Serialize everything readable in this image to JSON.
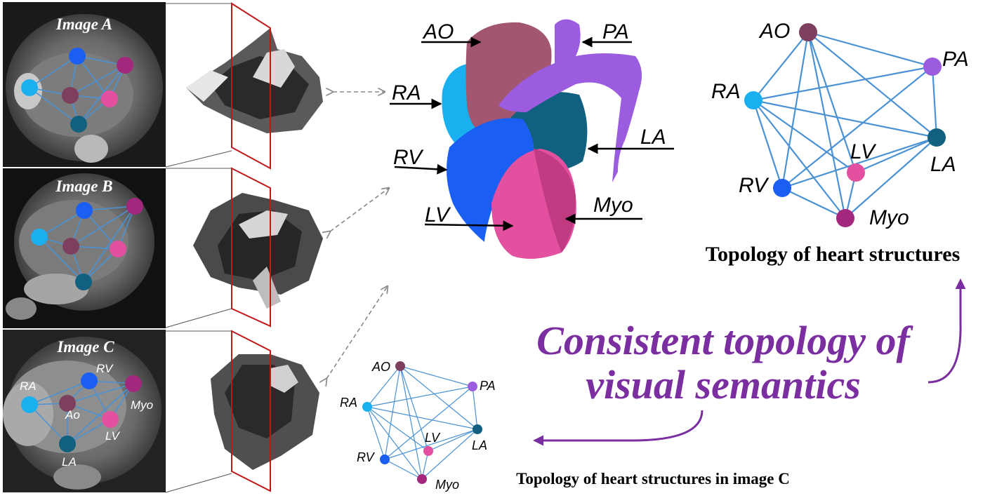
{
  "panels": [
    {
      "label": "Image A"
    },
    {
      "label": "Image B"
    },
    {
      "label": "Image C",
      "node_labels": [
        "RA",
        "RV",
        "Myo",
        "Ao",
        "LV",
        "LA"
      ]
    }
  ],
  "heart": {
    "labels": [
      "AO",
      "PA",
      "RA",
      "LA",
      "RV",
      "LV",
      "Myo"
    ]
  },
  "topology_main": {
    "title": "Topology of heart structures",
    "nodes": [
      "AO",
      "PA",
      "RA",
      "LA",
      "LV",
      "RV",
      "Myo"
    ]
  },
  "topology_c": {
    "title": "Topology of heart structures in image C",
    "nodes": [
      "AO",
      "PA",
      "RA",
      "LA",
      "LV",
      "RV",
      "Myo"
    ]
  },
  "headline": {
    "line1": "Consistent topology of",
    "line2": "visual semantics"
  },
  "colors": {
    "AO": "#7e3f5e",
    "PA": "#9b5ce0",
    "RA": "#1ab0ef",
    "LA": "#11607f",
    "LV": "#e2509f",
    "RV": "#1a5ff2",
    "Myo": "#a3287d",
    "edge": "#4a92d4",
    "accent": "#7a2ea0",
    "plane": "#c0191a"
  }
}
